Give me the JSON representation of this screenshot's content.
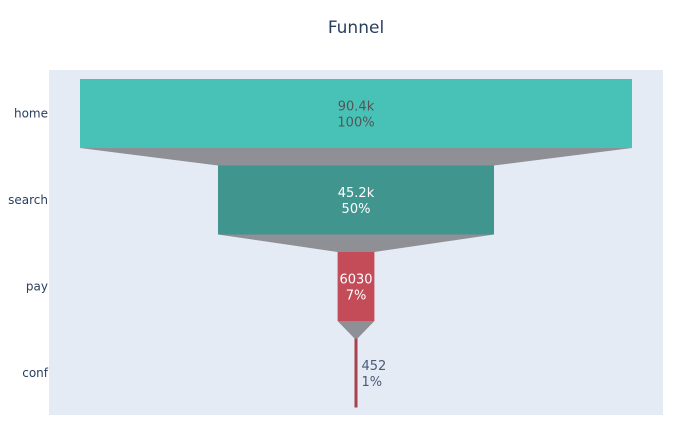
{
  "chart_data": {
    "type": "funnel",
    "title": "Funnel",
    "categories": [
      "home",
      "search",
      "pay",
      "conf"
    ],
    "values": [
      90400,
      45200,
      6030,
      452
    ],
    "value_labels": [
      "90.4k",
      "45.2k",
      "6030",
      "452"
    ],
    "percent_labels": [
      "100%",
      "50%",
      "7%",
      "1%"
    ],
    "colors": [
      "#48c2b7",
      "#40958e",
      "#c34c58",
      "#a8424c"
    ],
    "label_colors": [
      "#555555",
      "#ffffff",
      "#ffffff",
      "#4a5a7a"
    ],
    "connector_color": "#8f9096",
    "plot_bg": "#e5ebf5"
  }
}
